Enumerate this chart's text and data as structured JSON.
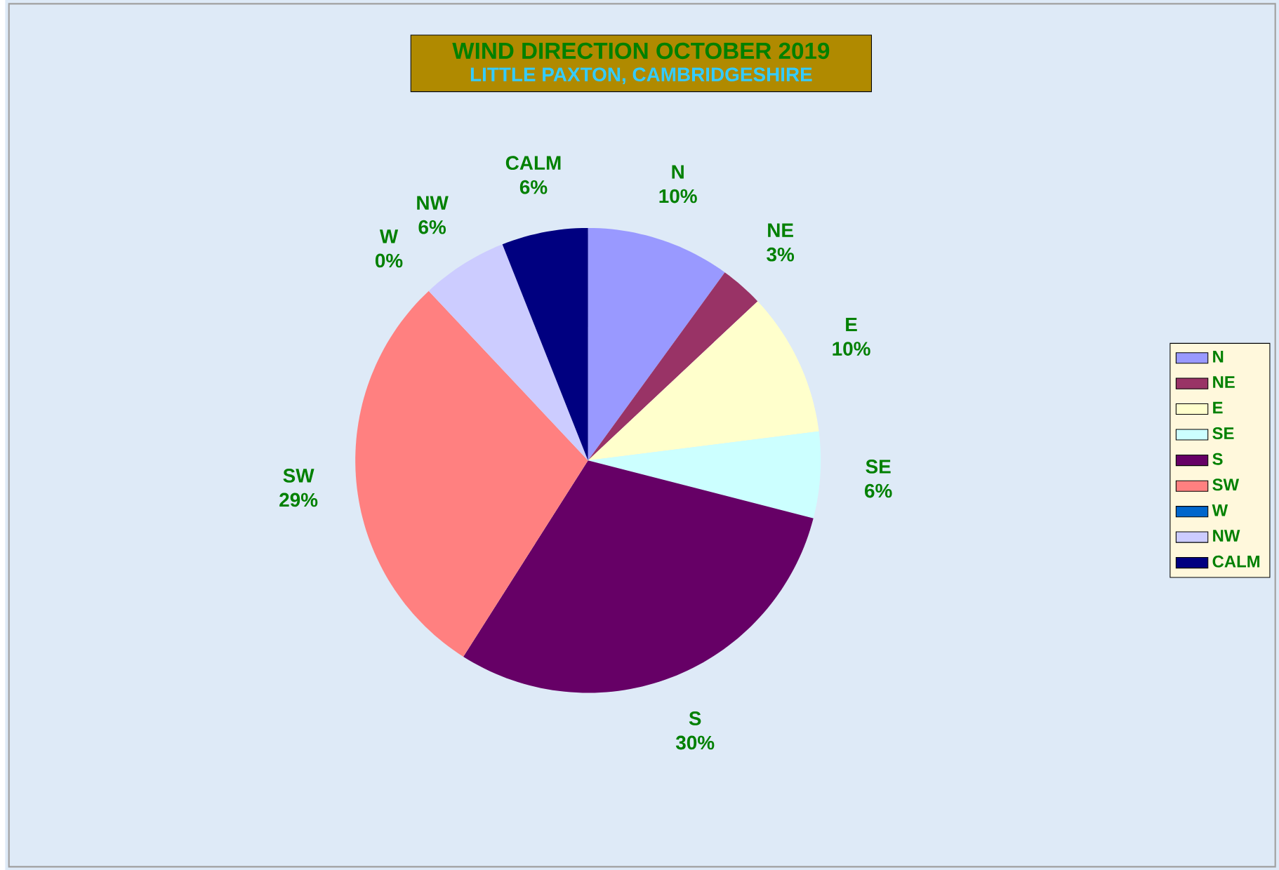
{
  "chart_data": {
    "type": "pie",
    "title": "WIND DIRECTION   OCTOBER 2019",
    "subtitle": "LITTLE PAXTON, CAMBRIDGESHIRE",
    "categories": [
      "N",
      "NE",
      "E",
      "SE",
      "S",
      "SW",
      "W",
      "NW",
      "CALM"
    ],
    "values": [
      10,
      3,
      10,
      6,
      30,
      29,
      0,
      6,
      6
    ],
    "value_labels": [
      "10%",
      "3%",
      "10%",
      "6%",
      "30%",
      "29%",
      "0%",
      "6%",
      "6%"
    ],
    "colors": [
      "#9999ff",
      "#993366",
      "#ffffcc",
      "#ccffff",
      "#660066",
      "#ff8080",
      "#0066cc",
      "#ccccff",
      "#000080"
    ],
    "legend": "right"
  }
}
